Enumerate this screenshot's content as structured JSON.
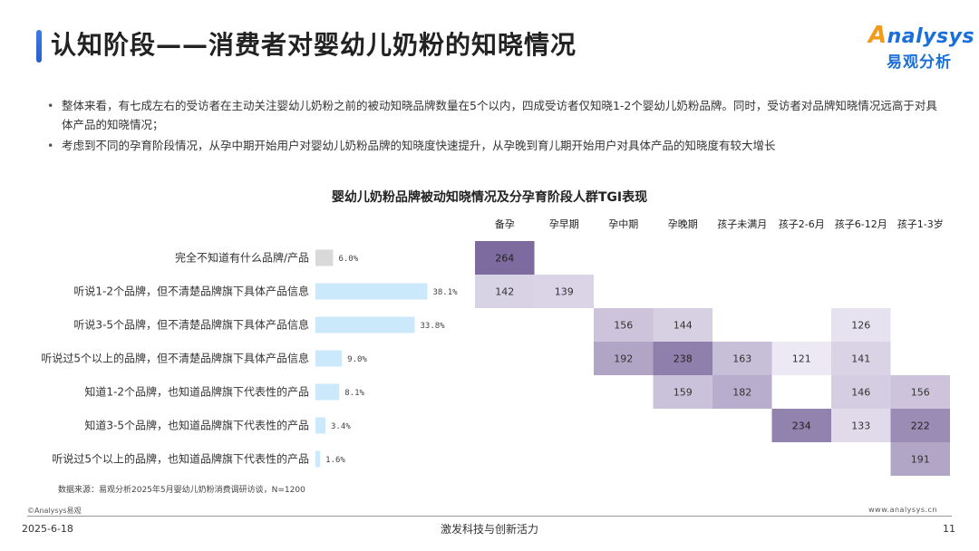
{
  "header": {
    "title": "认知阶段——消费者对婴幼儿奶粉的知晓情况",
    "logo_text": "nalysys",
    "logo_letter": "A",
    "logo_cn": "易观分析"
  },
  "bullets": [
    "整体来看，有七成左右的受访者在主动关注婴幼儿奶粉之前的被动知晓品牌数量在5个以内，四成受访者仅知晓1-2个婴幼儿奶粉品牌。同时，受访者对品牌知晓情况远高于对具体产品的知晓情况；",
    "考虑到不同的孕育阶段情况，从孕中期开始用户对婴幼儿奶粉品牌的知晓度快速提升，从孕晚到育儿期开始用户对具体产品的知晓度有较大增长"
  ],
  "chart_data": {
    "type": "bar",
    "title": "婴幼儿奶粉品牌被动知晓情况及分孕育阶段人群TGI表现",
    "orientation": "horizontal",
    "categories": [
      "完全不知道有什么品牌/产品",
      "听说1-2个品牌，但不清楚品牌旗下具体产品信息",
      "听说3-5个品牌，但不清楚品牌旗下具体产品信息",
      "听说过5个以上的品牌，但不清楚品牌旗下具体产品信息",
      "知道1-2个品牌，也知道品牌旗下代表性的产品",
      "知道3-5个品牌，也知道品牌旗下代表性的产品",
      "听说过5个以上的品牌，也知道品牌旗下代表性的产品"
    ],
    "values": [
      6.0,
      38.1,
      33.8,
      9.0,
      8.1,
      3.4,
      1.6
    ],
    "value_labels": [
      "6.0%",
      "38.1%",
      "33.8%",
      "9.0%",
      "8.1%",
      "3.4%",
      "1.6%"
    ],
    "bar_colors": [
      "#d9d9d9",
      "#cbe9fb",
      "#cbe9fb",
      "#cbe9fb",
      "#cbe9fb",
      "#cbe9fb",
      "#cbe9fb"
    ],
    "heatmap": {
      "type": "heatmap",
      "columns": [
        "备孕",
        "孕早期",
        "孕中期",
        "孕晚期",
        "孩子未满月",
        "孩子2-6月",
        "孩子6-12月",
        "孩子1-3岁"
      ],
      "cells": [
        [
          264,
          null,
          null,
          null,
          null,
          null,
          null,
          null
        ],
        [
          142,
          139,
          null,
          null,
          null,
          null,
          null,
          null
        ],
        [
          null,
          null,
          156,
          144,
          null,
          null,
          126,
          null
        ],
        [
          null,
          null,
          192,
          238,
          163,
          121,
          141,
          null
        ],
        [
          null,
          null,
          null,
          159,
          182,
          null,
          146,
          156
        ],
        [
          null,
          null,
          null,
          null,
          null,
          234,
          133,
          222
        ],
        [
          null,
          null,
          null,
          null,
          null,
          null,
          null,
          191
        ]
      ],
      "color_scale": [
        "#ece8f4",
        "#7d6a9e"
      ]
    }
  },
  "footer": {
    "source": "数据来源：易观分析2025年5月婴幼儿奶粉消费调研访谈，N=1200",
    "copyright": "©Analysys易观",
    "website": "www.analysys.cn",
    "date": "2025-6-18",
    "slogan": "激发科技与创新活力",
    "page": "11"
  }
}
